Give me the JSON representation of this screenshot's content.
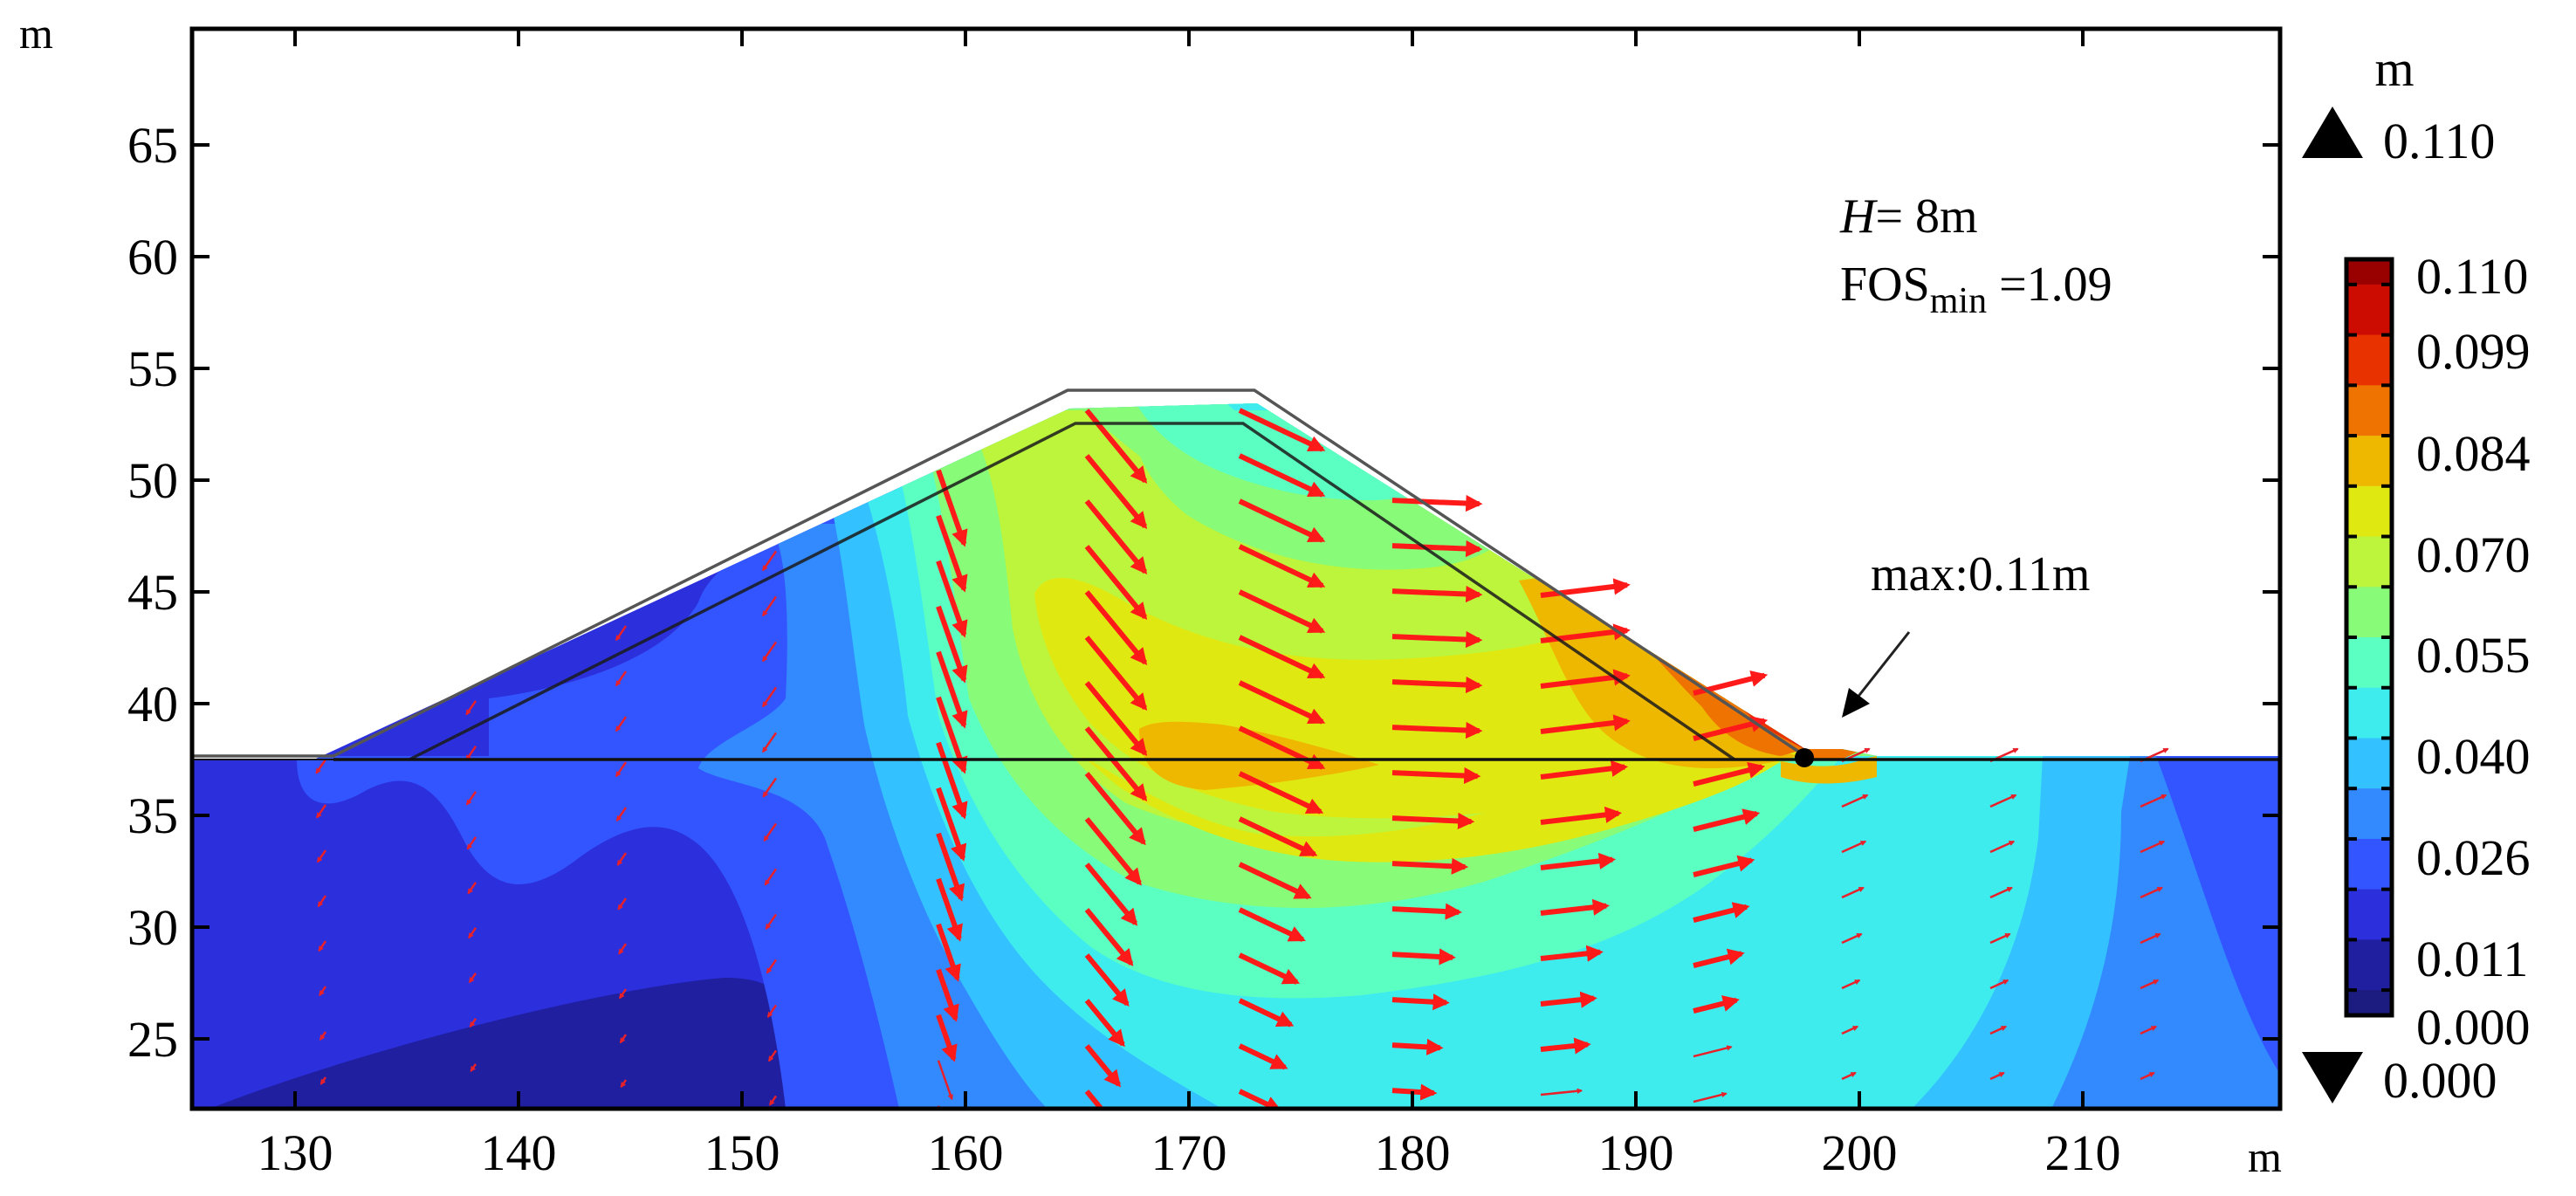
{
  "chart_data": {
    "type": "heatmap",
    "title": "",
    "subtype": "filled contour of total displacement with displacement vectors (embankment slope)",
    "xlabel": "m",
    "ylabel": "m",
    "xlim": [
      125.5,
      218.5
    ],
    "ylim": [
      22,
      70.2
    ],
    "x_ticks": [
      130,
      140,
      150,
      160,
      170,
      180,
      190,
      200,
      210
    ],
    "y_ticks": [
      25,
      30,
      35,
      40,
      45,
      50,
      55,
      60,
      65
    ],
    "grid": false,
    "colorbar": {
      "unit": "m",
      "max_marker": "0.110",
      "min_marker": "0.000",
      "tick_labels": [
        "0.110",
        "0.099",
        "0.084",
        "0.070",
        "0.055",
        "0.040",
        "0.026",
        "0.011",
        "0.000"
      ],
      "levels": [
        0.0,
        0.004,
        0.011,
        0.018,
        0.026,
        0.033,
        0.04,
        0.048,
        0.055,
        0.062,
        0.07,
        0.077,
        0.084,
        0.092,
        0.099,
        0.106,
        0.11
      ],
      "colors_top_to_bottom": [
        "#990000",
        "#cc0c00",
        "#e83300",
        "#ee7300",
        "#eeb700",
        "#e0e812",
        "#bcf53c",
        "#88fb78",
        "#5cffc2",
        "#3eecee",
        "#33c2ff",
        "#338aff",
        "#3355ff",
        "#2c2fdc",
        "#1f1fa0",
        "#1c1c80"
      ]
    },
    "annotations": {
      "H_label": "H",
      "H_value": "= 8m",
      "fos_label": "FOS",
      "fos_sub": "min",
      "fos_value": " =1.09",
      "max_label": "max:0.11m",
      "max_point": [
        197.5,
        37.5
      ]
    },
    "geometry": {
      "ground_level": 37.5,
      "original_surface": [
        [
          125.5,
          37.5
        ],
        [
          131.5,
          37.5
        ],
        [
          164.8,
          54.0
        ],
        [
          173.2,
          54.0
        ],
        [
          197.5,
          37.5
        ],
        [
          218.5,
          37.5
        ]
      ],
      "deformed_surface": [
        [
          135.0,
          37.5
        ],
        [
          164.3,
          52.5
        ],
        [
          171.8,
          52.5
        ],
        [
          194.4,
          37.5
        ]
      ]
    },
    "displacement_field": {
      "max_displacement_m": 0.11,
      "max_location": "right (downstream) slope toe",
      "dominant_direction": "downward under crest, horizontal toward right in right slope, upward-right beyond toe"
    }
  },
  "figure": {
    "y_axis_unit": "m",
    "x_axis_unit": "m",
    "y_tick_labels": [
      "65",
      "60",
      "55",
      "50",
      "45",
      "40",
      "35",
      "30",
      "25"
    ],
    "x_tick_labels": [
      "130",
      "140",
      "150",
      "160",
      "170",
      "180",
      "190",
      "200",
      "210"
    ],
    "colorbar_unit": "m",
    "colorbar_max": "0.110",
    "colorbar_min": "0.000",
    "colorbar_ticks": [
      "0.110",
      "0.099",
      "0.084",
      "0.070",
      "0.055",
      "0.040",
      "0.026",
      "0.011",
      "0.000"
    ],
    "annot_H": "H",
    "annot_H_value": "= 8m",
    "annot_fos": "FOS",
    "annot_fos_sub": "min",
    "annot_fos_value": " =1.09",
    "annot_max": "max:0.11m"
  },
  "style": {
    "arrow_color": "#ff1a1a",
    "contour_colors": {
      "c0": "#1c1c80",
      "c1": "#1f1fa0",
      "c2": "#2c2fdc",
      "c3": "#3355ff",
      "c4": "#338aff",
      "c5": "#33c2ff",
      "c6": "#3eecee",
      "c7": "#5cffc2",
      "c8": "#88fb78",
      "c9": "#bcf53c",
      "c10": "#e0e812",
      "c11": "#eeb700",
      "c12": "#ee7300",
      "c13": "#e83300",
      "c14": "#cc0c00",
      "c15": "#990000"
    }
  }
}
